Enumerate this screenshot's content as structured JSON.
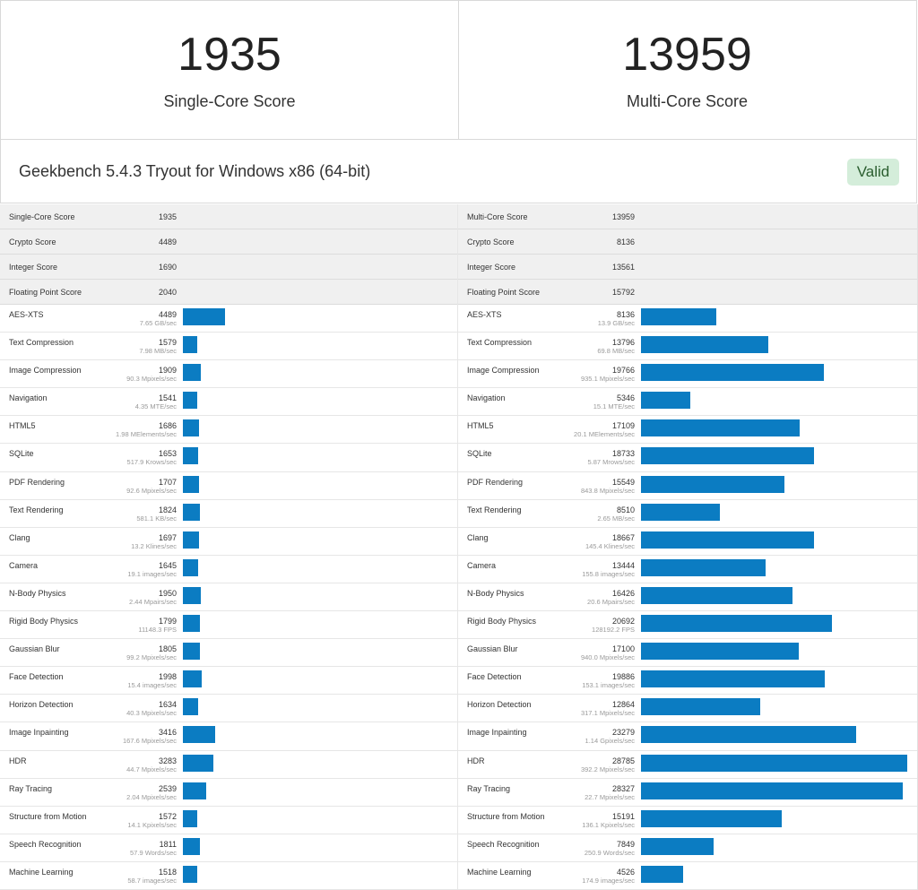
{
  "header": {
    "single_core": {
      "value": "1935",
      "label": "Single-Core Score"
    },
    "multi_core": {
      "value": "13959",
      "label": "Multi-Core Score"
    },
    "version": "Geekbench 5.4.3 Tryout for Windows x86 (64-bit)",
    "valid_label": "Valid",
    "valid_color": "#d4edda",
    "bar_color": "#0b7cc2"
  },
  "chart_data": {
    "type": "bar",
    "orientation": "horizontal",
    "xlim": [
      0,
      28785
    ],
    "left": {
      "summary": [
        {
          "name": "Single-Core Score",
          "value": "1935"
        },
        {
          "name": "Crypto Score",
          "value": "4489"
        },
        {
          "name": "Integer Score",
          "value": "1690"
        },
        {
          "name": "Floating Point Score",
          "value": "2040"
        }
      ],
      "benchmarks": [
        {
          "name": "AES-XTS",
          "score": 4489,
          "detail": "7.65 GB/sec"
        },
        {
          "name": "Text Compression",
          "score": 1579,
          "detail": "7.98 MB/sec"
        },
        {
          "name": "Image Compression",
          "score": 1909,
          "detail": "90.3 Mpixels/sec"
        },
        {
          "name": "Navigation",
          "score": 1541,
          "detail": "4.35 MTE/sec"
        },
        {
          "name": "HTML5",
          "score": 1686,
          "detail": "1.98 MElements/sec"
        },
        {
          "name": "SQLite",
          "score": 1653,
          "detail": "517.9 Krows/sec"
        },
        {
          "name": "PDF Rendering",
          "score": 1707,
          "detail": "92.6 Mpixels/sec"
        },
        {
          "name": "Text Rendering",
          "score": 1824,
          "detail": "581.1 KB/sec"
        },
        {
          "name": "Clang",
          "score": 1697,
          "detail": "13.2 Klines/sec"
        },
        {
          "name": "Camera",
          "score": 1645,
          "detail": "19.1 images/sec"
        },
        {
          "name": "N-Body Physics",
          "score": 1950,
          "detail": "2.44 Mpairs/sec"
        },
        {
          "name": "Rigid Body Physics",
          "score": 1799,
          "detail": "11148.3 FPS"
        },
        {
          "name": "Gaussian Blur",
          "score": 1805,
          "detail": "99.2 Mpixels/sec"
        },
        {
          "name": "Face Detection",
          "score": 1998,
          "detail": "15.4 images/sec"
        },
        {
          "name": "Horizon Detection",
          "score": 1634,
          "detail": "40.3 Mpixels/sec"
        },
        {
          "name": "Image Inpainting",
          "score": 3416,
          "detail": "167.6 Mpixels/sec"
        },
        {
          "name": "HDR",
          "score": 3283,
          "detail": "44.7 Mpixels/sec"
        },
        {
          "name": "Ray Tracing",
          "score": 2539,
          "detail": "2.04 Mpixels/sec"
        },
        {
          "name": "Structure from Motion",
          "score": 1572,
          "detail": "14.1 Kpixels/sec"
        },
        {
          "name": "Speech Recognition",
          "score": 1811,
          "detail": "57.9 Words/sec"
        },
        {
          "name": "Machine Learning",
          "score": 1518,
          "detail": "58.7 images/sec"
        }
      ]
    },
    "right": {
      "summary": [
        {
          "name": "Multi-Core Score",
          "value": "13959"
        },
        {
          "name": "Crypto Score",
          "value": "8136"
        },
        {
          "name": "Integer Score",
          "value": "13561"
        },
        {
          "name": "Floating Point Score",
          "value": "15792"
        }
      ],
      "benchmarks": [
        {
          "name": "AES-XTS",
          "score": 8136,
          "detail": "13.9 GB/sec"
        },
        {
          "name": "Text Compression",
          "score": 13796,
          "detail": "69.8 MB/sec"
        },
        {
          "name": "Image Compression",
          "score": 19766,
          "detail": "935.1 Mpixels/sec"
        },
        {
          "name": "Navigation",
          "score": 5346,
          "detail": "15.1 MTE/sec"
        },
        {
          "name": "HTML5",
          "score": 17109,
          "detail": "20.1 MElements/sec"
        },
        {
          "name": "SQLite",
          "score": 18733,
          "detail": "5.87 Mrows/sec"
        },
        {
          "name": "PDF Rendering",
          "score": 15549,
          "detail": "843.8 Mpixels/sec"
        },
        {
          "name": "Text Rendering",
          "score": 8510,
          "detail": "2.65 MB/sec"
        },
        {
          "name": "Clang",
          "score": 18667,
          "detail": "145.4 Klines/sec"
        },
        {
          "name": "Camera",
          "score": 13444,
          "detail": "155.8 images/sec"
        },
        {
          "name": "N-Body Physics",
          "score": 16426,
          "detail": "20.6 Mpairs/sec"
        },
        {
          "name": "Rigid Body Physics",
          "score": 20692,
          "detail": "128192.2 FPS"
        },
        {
          "name": "Gaussian Blur",
          "score": 17100,
          "detail": "940.0 Mpixels/sec"
        },
        {
          "name": "Face Detection",
          "score": 19886,
          "detail": "153.1 images/sec"
        },
        {
          "name": "Horizon Detection",
          "score": 12864,
          "detail": "317.1 Mpixels/sec"
        },
        {
          "name": "Image Inpainting",
          "score": 23279,
          "detail": "1.14 Gpixels/sec"
        },
        {
          "name": "HDR",
          "score": 28785,
          "detail": "392.2 Mpixels/sec"
        },
        {
          "name": "Ray Tracing",
          "score": 28327,
          "detail": "22.7 Mpixels/sec"
        },
        {
          "name": "Structure from Motion",
          "score": 15191,
          "detail": "136.1 Kpixels/sec"
        },
        {
          "name": "Speech Recognition",
          "score": 7849,
          "detail": "250.9 Words/sec"
        },
        {
          "name": "Machine Learning",
          "score": 4526,
          "detail": "174.9 images/sec"
        }
      ]
    }
  }
}
